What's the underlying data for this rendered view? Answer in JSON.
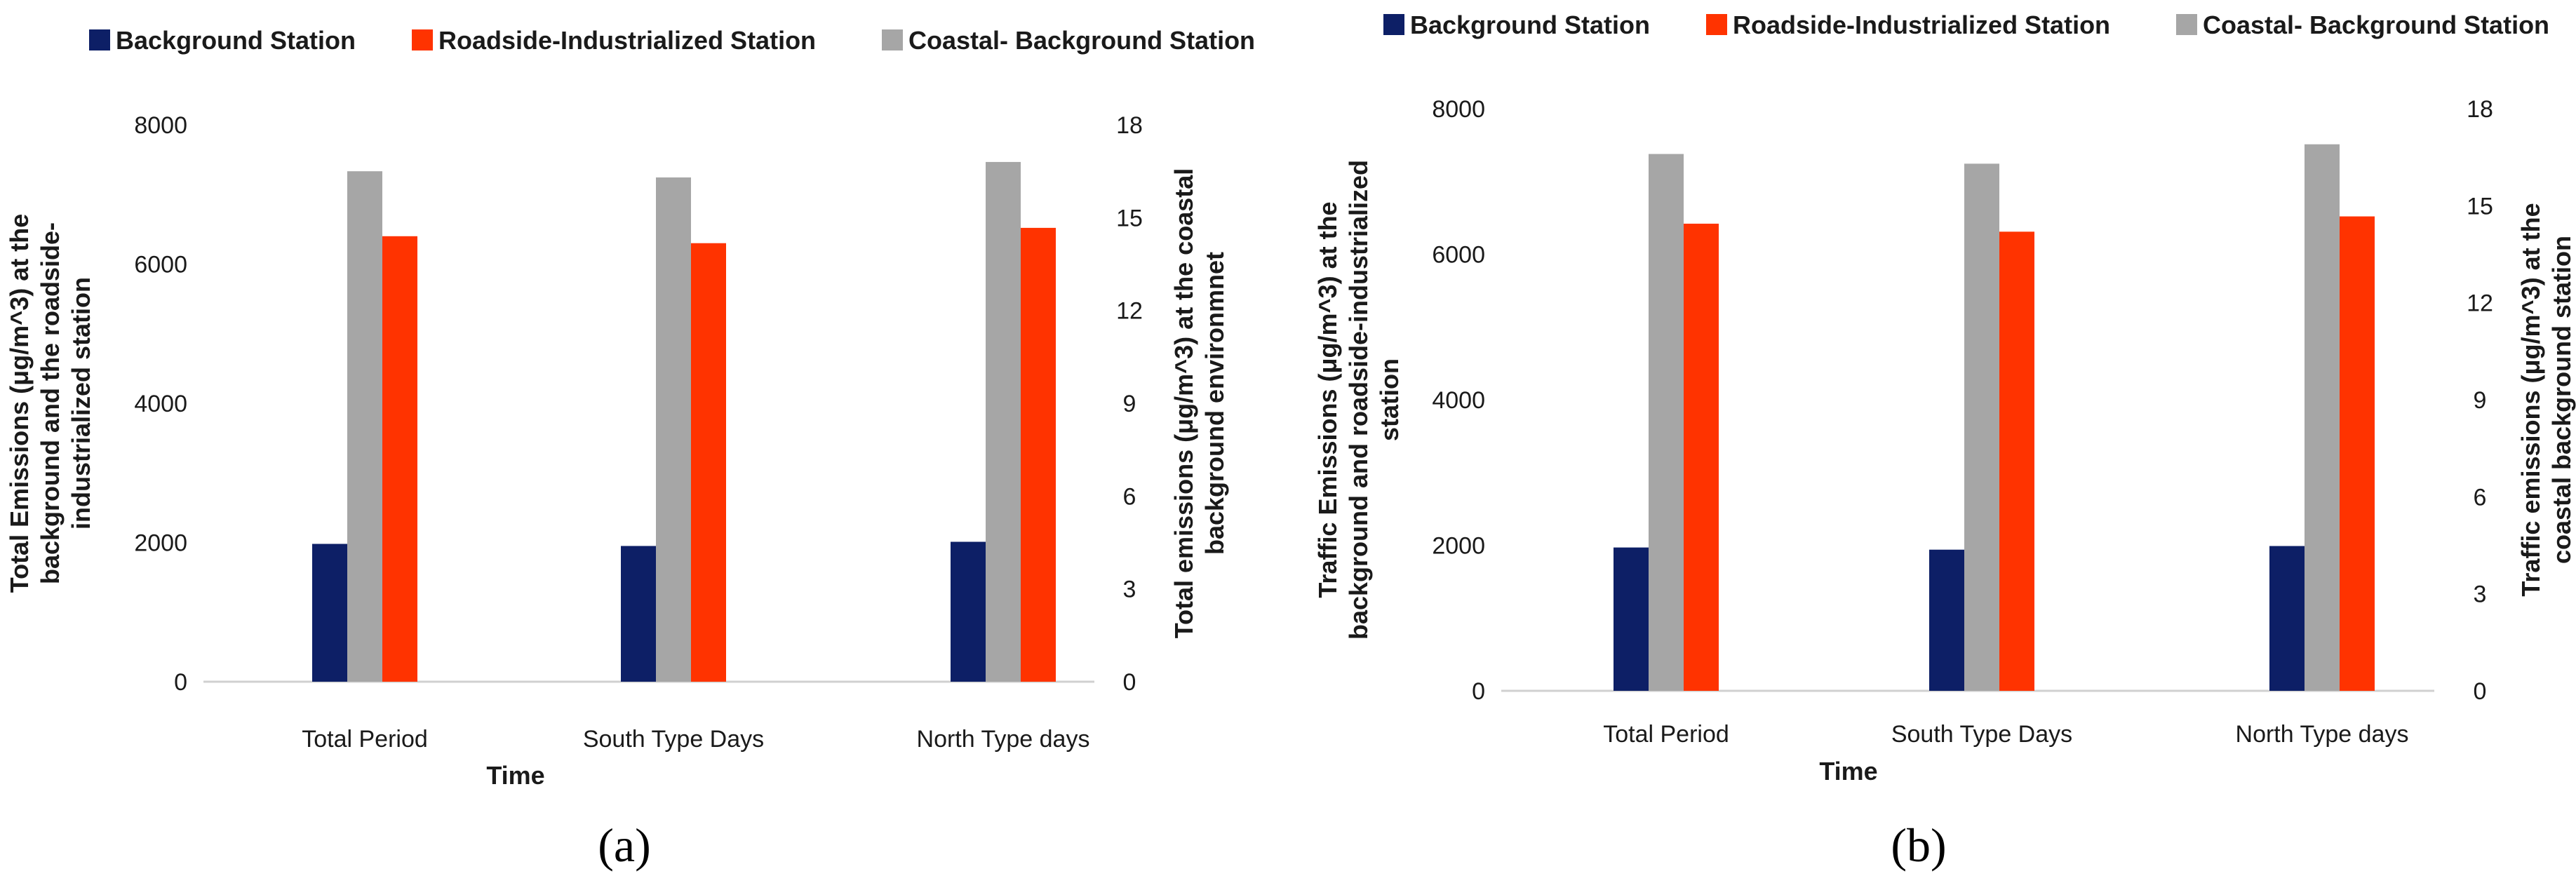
{
  "chart_data": [
    {
      "type": "bar",
      "panel_label": "(a)",
      "categories": [
        "Total Period",
        "South Type Days",
        "North Type days"
      ],
      "xlabel": "Time",
      "ylabel_left_lines": [
        "Total Emissions (μg/m^3) at the",
        "background and the roadside-",
        "industrialized  station"
      ],
      "ylabel_right_lines": [
        "Total emissions (μg/m^3) at the coastal",
        "background environmnet"
      ],
      "y_left": {
        "min": 0,
        "max": 8000,
        "ticks": [
          0,
          2000,
          4000,
          6000,
          8000
        ]
      },
      "y_right": {
        "min": 0,
        "max": 18,
        "ticks": [
          0,
          3,
          6,
          9,
          12,
          15,
          18
        ]
      },
      "series": [
        {
          "name": "Background Station",
          "color": "#0d1f66",
          "axis": "left",
          "values": [
            1980,
            1950,
            2010
          ]
        },
        {
          "name": "Coastal- Background Station",
          "color": "#a6a6a6",
          "axis": "right",
          "values": [
            16.5,
            16.3,
            16.8
          ]
        },
        {
          "name": "Roadside-Industrialized Station",
          "color": "#ff3300",
          "axis": "left",
          "values": [
            6400,
            6300,
            6520
          ]
        }
      ],
      "legend": [
        "Background Station",
        "Roadside-Industrialized Station",
        "Coastal- Background Station"
      ]
    },
    {
      "type": "bar",
      "panel_label": "(b)",
      "categories": [
        "Total Period",
        "South Type Days",
        "North Type days"
      ],
      "xlabel": "Time",
      "ylabel_left_lines": [
        "Traffic Emissions (μg/m^3) at the",
        "background and roadside-industrialized",
        "station"
      ],
      "ylabel_right_lines": [
        "Traffic emissions (μg/m^3) at the",
        "coastal background station"
      ],
      "y_left": {
        "min": 0,
        "max": 8000,
        "ticks": [
          0,
          2000,
          4000,
          6000,
          8000
        ]
      },
      "y_right": {
        "min": 0,
        "max": 18,
        "ticks": [
          0,
          3,
          6,
          9,
          12,
          15,
          18
        ]
      },
      "series": [
        {
          "name": "Background Station",
          "color": "#0d1f66",
          "axis": "left",
          "values": [
            1970,
            1940,
            1990
          ]
        },
        {
          "name": "Coastal- Background Station",
          "color": "#a6a6a6",
          "axis": "right",
          "values": [
            16.6,
            16.3,
            16.9
          ]
        },
        {
          "name": "Roadside-Industrialized Station",
          "color": "#ff3300",
          "axis": "left",
          "values": [
            6420,
            6310,
            6520
          ]
        }
      ],
      "legend": [
        "Background Station",
        "Roadside-Industrialized Station",
        "Coastal- Background Station"
      ]
    }
  ]
}
